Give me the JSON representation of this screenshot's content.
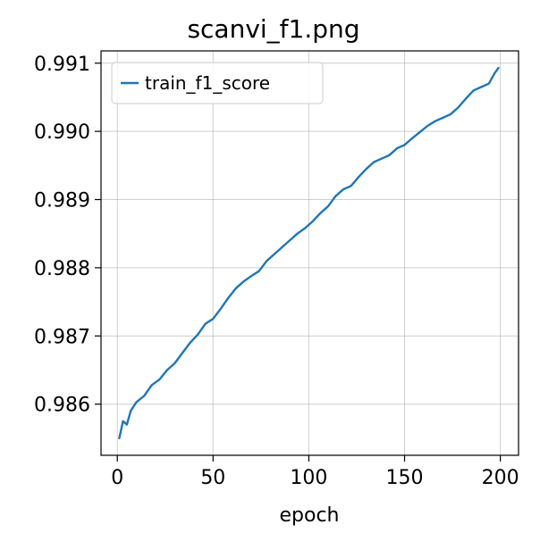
{
  "chart_data": {
    "type": "line",
    "title": "scanvi_f1.png",
    "xlabel": "epoch",
    "ylabel": "",
    "xlim": [
      -8.5,
      209.5
    ],
    "ylim": [
      0.98525,
      0.99118
    ],
    "xticks": [
      0,
      50,
      100,
      150,
      200
    ],
    "xtick_labels": [
      "0",
      "50",
      "100",
      "150",
      "200"
    ],
    "yticks": [
      0.986,
      0.987,
      0.988,
      0.989,
      0.99,
      0.991
    ],
    "ytick_labels": [
      "0.986",
      "0.987",
      "0.988",
      "0.989",
      "0.990",
      "0.991"
    ],
    "grid": true,
    "legend": {
      "location": "upper-left"
    },
    "series": [
      {
        "name": "train_f1_score",
        "color": "#1f77b4",
        "x": [
          1,
          3,
          5,
          7,
          10,
          14,
          18,
          22,
          26,
          30,
          34,
          38,
          42,
          46,
          50,
          54,
          58,
          62,
          66,
          70,
          74,
          78,
          82,
          86,
          90,
          94,
          98,
          102,
          106,
          110,
          114,
          118,
          122,
          126,
          130,
          134,
          138,
          142,
          146,
          150,
          154,
          158,
          162,
          166,
          170,
          174,
          178,
          182,
          186,
          190,
          194,
          197,
          199
        ],
        "y": [
          0.9855,
          0.98575,
          0.9857,
          0.9859,
          0.98603,
          0.98612,
          0.98628,
          0.98636,
          0.9865,
          0.9866,
          0.98675,
          0.9869,
          0.98702,
          0.98718,
          0.98725,
          0.9874,
          0.98756,
          0.9877,
          0.9878,
          0.98788,
          0.98795,
          0.9881,
          0.9882,
          0.9883,
          0.9884,
          0.9885,
          0.98858,
          0.98868,
          0.9888,
          0.9889,
          0.98905,
          0.98915,
          0.9892,
          0.98933,
          0.98945,
          0.98955,
          0.9896,
          0.98965,
          0.98975,
          0.9898,
          0.9899,
          0.98999,
          0.99008,
          0.99015,
          0.9902,
          0.99025,
          0.99035,
          0.99048,
          0.9906,
          0.99065,
          0.9907,
          0.99085,
          0.99093
        ]
      }
    ]
  }
}
